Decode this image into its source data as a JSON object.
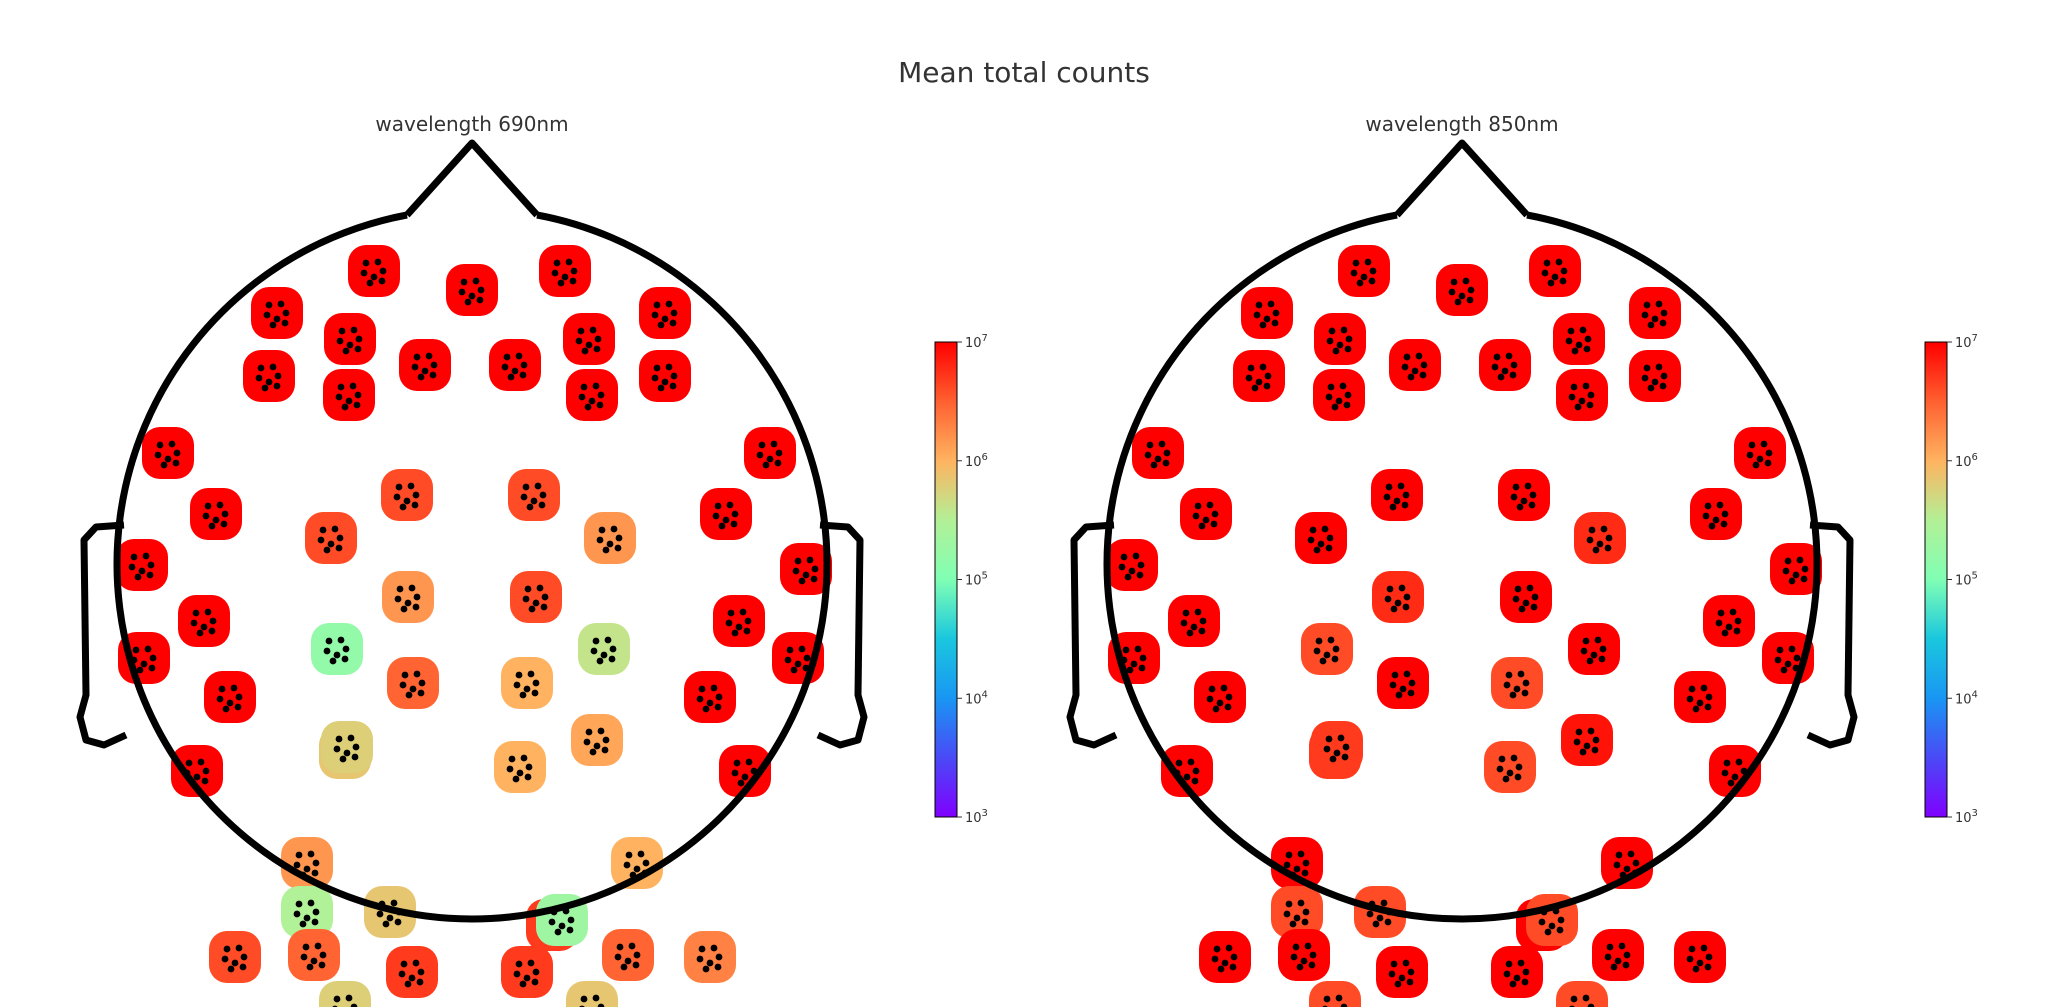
{
  "figure": {
    "title": "Mean total counts"
  },
  "chart_data": [
    {
      "type": "heatmap",
      "subtype": "topomap",
      "title": "wavelength 690nm",
      "colormap": "rainbow",
      "scale": "log",
      "colorbar": {
        "range": [
          1000,
          10000000
        ],
        "ticks": [
          "10^3",
          "10^4",
          "10^5",
          "10^6",
          "10^7"
        ]
      },
      "electrodes": [
        {
          "region": "frontal",
          "value": 10000000
        },
        {
          "region": "frontal",
          "value": 10000000
        },
        {
          "region": "frontal",
          "value": 10000000
        },
        {
          "region": "frontal",
          "value": 10000000
        },
        {
          "region": "frontal",
          "value": 10000000
        },
        {
          "region": "frontal",
          "value": 10000000
        },
        {
          "region": "frontal",
          "value": 10000000
        },
        {
          "region": "frontal",
          "value": 10000000
        },
        {
          "region": "frontal",
          "value": 10000000
        },
        {
          "region": "frontal",
          "value": 10000000
        },
        {
          "region": "frontal",
          "value": 10000000
        },
        {
          "region": "frontal",
          "value": 10000000
        },
        {
          "region": "frontal",
          "value": 10000000
        },
        {
          "region": "lateral",
          "value": 10000000
        },
        {
          "region": "lateral",
          "value": 10000000
        },
        {
          "region": "lateral",
          "value": 10000000
        },
        {
          "region": "lateral",
          "value": 10000000
        },
        {
          "region": "lateral",
          "value": 10000000
        },
        {
          "region": "lateral",
          "value": 10000000
        },
        {
          "region": "lateral",
          "value": 10000000
        },
        {
          "region": "lateral",
          "value": 10000000
        },
        {
          "region": "lateral",
          "value": 10000000
        },
        {
          "region": "lateral",
          "value": 10000000
        },
        {
          "region": "lateral",
          "value": 10000000
        },
        {
          "region": "lateral",
          "value": 10000000
        },
        {
          "region": "lateral",
          "value": 10000000
        },
        {
          "region": "lateral",
          "value": 10000000
        },
        {
          "region": "central",
          "value": 4000000
        },
        {
          "region": "central",
          "value": 4000000
        },
        {
          "region": "central",
          "value": 4000000
        },
        {
          "region": "central",
          "value": 1500000
        },
        {
          "region": "central",
          "value": 1500000
        },
        {
          "region": "central",
          "value": 4000000
        },
        {
          "region": "central",
          "value": 150000
        },
        {
          "region": "central",
          "value": 400000
        },
        {
          "region": "central",
          "value": 3000000
        },
        {
          "region": "central",
          "value": 1000000
        },
        {
          "region": "central",
          "value": 700000
        },
        {
          "region": "central",
          "value": 1200000
        },
        {
          "region": "central",
          "value": 600000
        },
        {
          "region": "central",
          "value": 1000000
        },
        {
          "region": "occipital",
          "value": 1500000
        },
        {
          "region": "occipital",
          "value": 700000
        },
        {
          "region": "occipital",
          "value": 300000
        },
        {
          "region": "occipital",
          "value": 1000000
        },
        {
          "region": "occipital",
          "value": 4000000
        },
        {
          "region": "occipital",
          "value": 3000000
        },
        {
          "region": "occipital",
          "value": 5000000
        },
        {
          "region": "occipital",
          "value": 5000000
        },
        {
          "region": "occipital",
          "value": 3000000
        },
        {
          "region": "occipital",
          "value": 2000000
        },
        {
          "region": "occipital",
          "value": 600000
        },
        {
          "region": "occipital",
          "value": 700000
        },
        {
          "region": "occipital",
          "value": 5000000
        },
        {
          "region": "occipital",
          "value": 200000
        }
      ]
    },
    {
      "type": "heatmap",
      "subtype": "topomap",
      "title": "wavelength 850nm",
      "colormap": "rainbow",
      "scale": "log",
      "colorbar": {
        "range": [
          1000,
          10000000
        ],
        "ticks": [
          "10^3",
          "10^4",
          "10^5",
          "10^6",
          "10^7"
        ]
      },
      "electrodes": [
        {
          "region": "frontal",
          "value": 10000000
        },
        {
          "region": "frontal",
          "value": 10000000
        },
        {
          "region": "frontal",
          "value": 10000000
        },
        {
          "region": "frontal",
          "value": 10000000
        },
        {
          "region": "frontal",
          "value": 10000000
        },
        {
          "region": "frontal",
          "value": 10000000
        },
        {
          "region": "frontal",
          "value": 10000000
        },
        {
          "region": "frontal",
          "value": 10000000
        },
        {
          "region": "frontal",
          "value": 10000000
        },
        {
          "region": "frontal",
          "value": 10000000
        },
        {
          "region": "frontal",
          "value": 10000000
        },
        {
          "region": "frontal",
          "value": 10000000
        },
        {
          "region": "frontal",
          "value": 10000000
        },
        {
          "region": "lateral",
          "value": 10000000
        },
        {
          "region": "lateral",
          "value": 10000000
        },
        {
          "region": "lateral",
          "value": 10000000
        },
        {
          "region": "lateral",
          "value": 10000000
        },
        {
          "region": "lateral",
          "value": 10000000
        },
        {
          "region": "lateral",
          "value": 10000000
        },
        {
          "region": "lateral",
          "value": 10000000
        },
        {
          "region": "lateral",
          "value": 10000000
        },
        {
          "region": "lateral",
          "value": 10000000
        },
        {
          "region": "lateral",
          "value": 10000000
        },
        {
          "region": "lateral",
          "value": 10000000
        },
        {
          "region": "lateral",
          "value": 10000000
        },
        {
          "region": "lateral",
          "value": 10000000
        },
        {
          "region": "lateral",
          "value": 10000000
        },
        {
          "region": "central",
          "value": 10000000
        },
        {
          "region": "central",
          "value": 10000000
        },
        {
          "region": "central",
          "value": 10000000
        },
        {
          "region": "central",
          "value": 6000000
        },
        {
          "region": "central",
          "value": 6000000
        },
        {
          "region": "central",
          "value": 10000000
        },
        {
          "region": "central",
          "value": 4000000
        },
        {
          "region": "central",
          "value": 10000000
        },
        {
          "region": "central",
          "value": 10000000
        },
        {
          "region": "central",
          "value": 4000000
        },
        {
          "region": "central",
          "value": 5000000
        },
        {
          "region": "central",
          "value": 8000000
        },
        {
          "region": "central",
          "value": 5000000
        },
        {
          "region": "central",
          "value": 4000000
        },
        {
          "region": "occipital",
          "value": 10000000
        },
        {
          "region": "occipital",
          "value": 4000000
        },
        {
          "region": "occipital",
          "value": 4000000
        },
        {
          "region": "occipital",
          "value": 10000000
        },
        {
          "region": "occipital",
          "value": 10000000
        },
        {
          "region": "occipital",
          "value": 10000000
        },
        {
          "region": "occipital",
          "value": 10000000
        },
        {
          "region": "occipital",
          "value": 10000000
        },
        {
          "region": "occipital",
          "value": 10000000
        },
        {
          "region": "occipital",
          "value": 10000000
        },
        {
          "region": "occipital",
          "value": 4000000
        },
        {
          "region": "occipital",
          "value": 4000000
        },
        {
          "region": "occipital",
          "value": 10000000
        },
        {
          "region": "occipital",
          "value": 4000000
        }
      ]
    }
  ]
}
